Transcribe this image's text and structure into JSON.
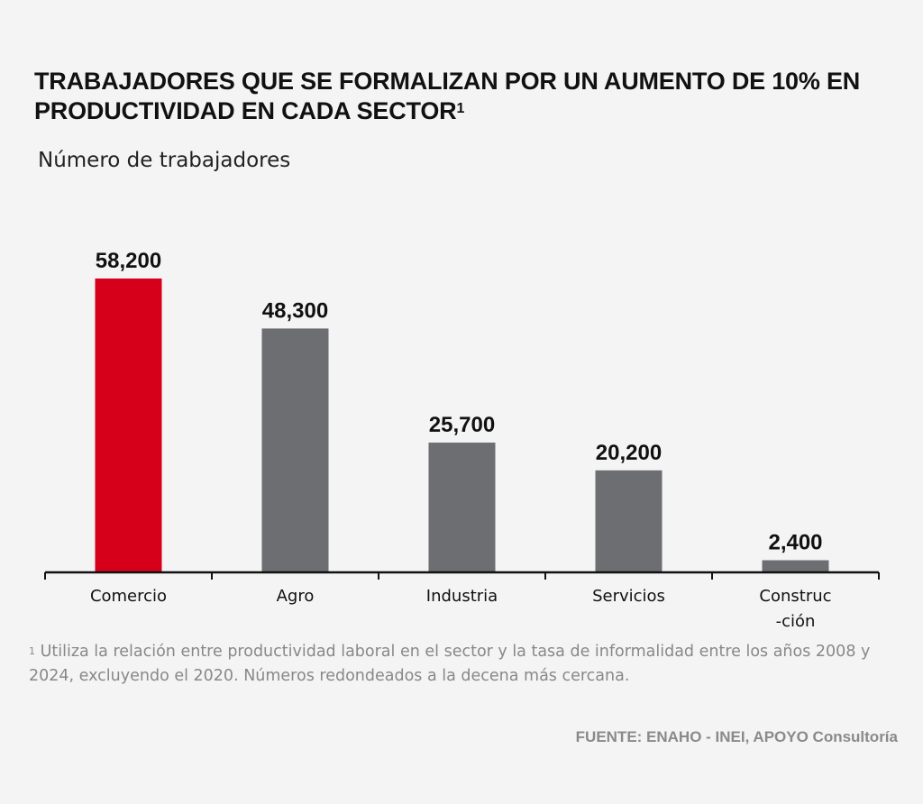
{
  "title": {
    "text": "TRABAJADORES QUE SE FORMALIZAN POR UN AUMENTO DE 10% EN PRODUCTIVIDAD EN CADA SECTOR",
    "superscript": "1"
  },
  "subtitle": "Número de trabajadores",
  "footnote": {
    "marker": "1",
    "text": "Utiliza la relación entre productividad laboral en el sector y la tasa de informalidad entre los años 2008 y 2024, excluyendo el 2020. Números redondeados a la decena más cercana."
  },
  "source": "FUENTE: ENAHO - INEI, APOYO Consultoría",
  "colors": {
    "highlight": "#d7001a",
    "bar": "#6d6e71",
    "axis": "#111111",
    "background": "#f4f4f4"
  },
  "chart_data": {
    "type": "bar",
    "categories": [
      [
        "Comercio"
      ],
      [
        "Agro"
      ],
      [
        "Industria"
      ],
      [
        "Servicios"
      ],
      [
        "Construc",
        "-ción"
      ]
    ],
    "values": [
      58200,
      48300,
      25700,
      20200,
      2400
    ],
    "value_labels": [
      "58,200",
      "48,300",
      "25,700",
      "20,200",
      "2,400"
    ],
    "highlight_index": 0,
    "ylim": [
      0,
      58200
    ],
    "grid": false,
    "legend": "none"
  }
}
